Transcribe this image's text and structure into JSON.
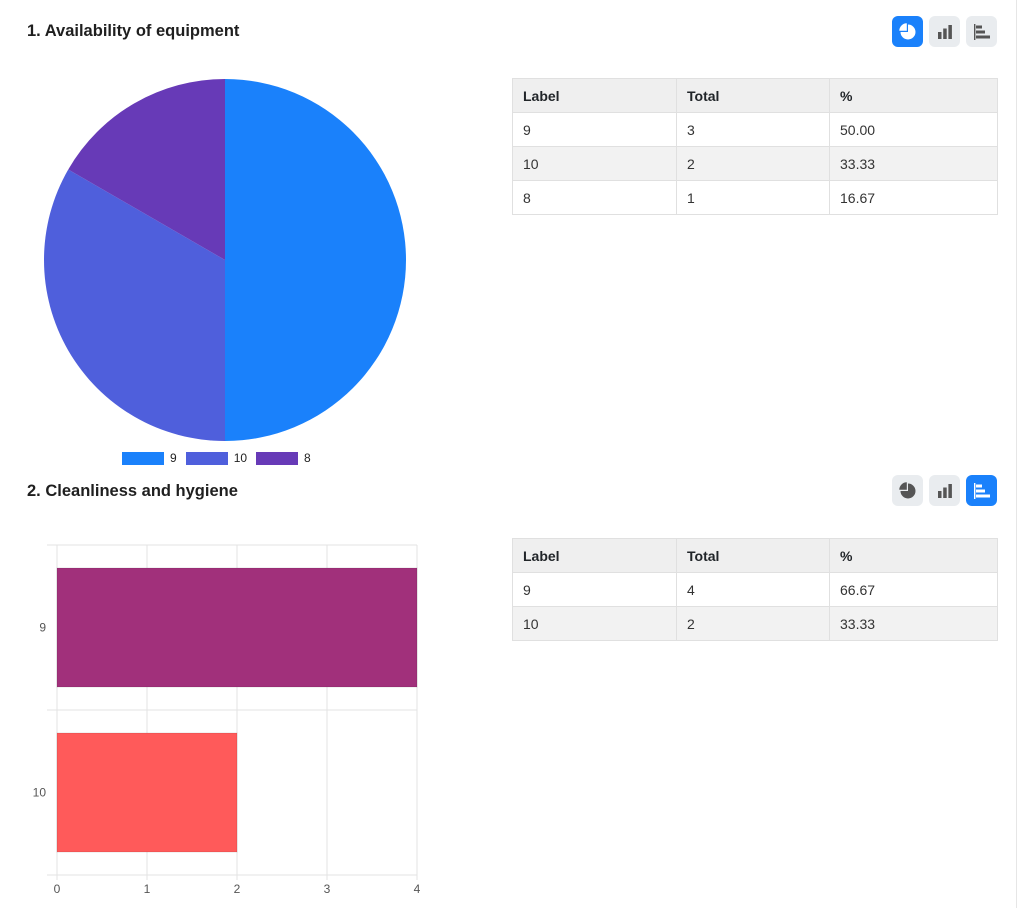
{
  "questions": [
    {
      "title": "1. Availability of equipment",
      "active_chart": "pie",
      "table": {
        "headers": [
          "Label",
          "Total",
          "%"
        ],
        "rows": [
          [
            "9",
            "3",
            "50.00"
          ],
          [
            "10",
            "2",
            "33.33"
          ],
          [
            "8",
            "1",
            "16.67"
          ]
        ]
      }
    },
    {
      "title": "2. Cleanliness and hygiene",
      "active_chart": "horizontal-bar",
      "table": {
        "headers": [
          "Label",
          "Total",
          "%"
        ],
        "rows": [
          [
            "9",
            "4",
            "66.67"
          ],
          [
            "10",
            "2",
            "33.33"
          ]
        ]
      }
    }
  ],
  "toggle_icons": [
    "pie-chart-icon",
    "bar-chart-icon",
    "horizontal-bar-chart-icon"
  ],
  "colors": {
    "accent": "#1a81fb",
    "icon_gray": "#555555"
  },
  "chart_data": [
    {
      "type": "pie",
      "categories": [
        "9",
        "10",
        "8"
      ],
      "values": [
        3,
        2,
        1
      ],
      "colors": [
        "#1a81fb",
        "#4f5fdc",
        "#673ab7"
      ],
      "legend": "bottom"
    },
    {
      "type": "bar",
      "orientation": "horizontal",
      "categories": [
        "9",
        "10"
      ],
      "values": [
        4,
        2
      ],
      "colors": [
        "#a1307b",
        "#ff5a5a"
      ],
      "xlim": [
        0,
        4
      ],
      "xticks": [
        "0",
        "1",
        "2",
        "3",
        "4"
      ],
      "grid": true
    }
  ]
}
